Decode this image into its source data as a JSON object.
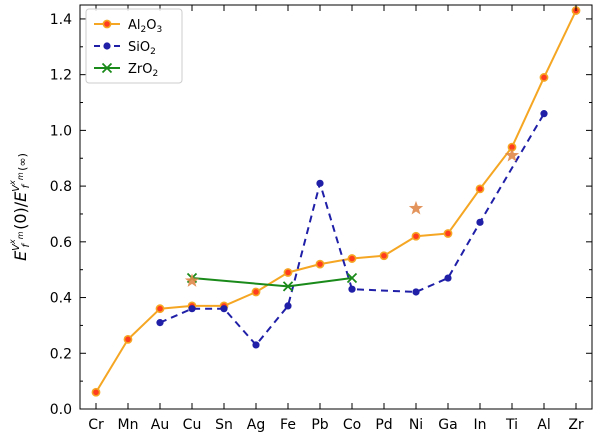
{
  "chart_data": {
    "type": "line",
    "categories": [
      "Cr",
      "Mn",
      "Au",
      "Cu",
      "Sn",
      "Ag",
      "Fe",
      "Pb",
      "Co",
      "Pd",
      "Ni",
      "Ga",
      "In",
      "Ti",
      "Al",
      "Zr"
    ],
    "ylim": [
      0.0,
      1.45
    ],
    "yticks": [
      "0.0",
      "0.2",
      "0.4",
      "0.6",
      "0.8",
      "1.0",
      "1.2",
      "1.4"
    ],
    "ylabel": "E_f^{V_m^x}(0)/E_f^{V_m^x}(∞)",
    "grid": false,
    "legend_position": "top-left",
    "series": [
      {
        "name": "Al2O3",
        "color": "#f5a623",
        "marker_fill": "#ff3c1e",
        "line_style": "solid",
        "marker": "dot",
        "values": [
          0.06,
          0.25,
          0.36,
          0.37,
          0.37,
          0.42,
          0.49,
          0.52,
          0.54,
          0.55,
          0.62,
          0.63,
          0.79,
          0.94,
          1.19,
          1.43
        ]
      },
      {
        "name": "SiO2",
        "color": "#1f1fa8",
        "line_style": "dashed",
        "marker": "dot",
        "values": [
          null,
          null,
          0.31,
          0.36,
          0.36,
          0.23,
          0.37,
          0.81,
          0.43,
          null,
          0.42,
          0.47,
          0.67,
          null,
          1.06,
          null
        ]
      },
      {
        "name": "ZrO2",
        "color": "#1a8a1a",
        "line_style": "solid",
        "marker": "x",
        "values": [
          null,
          null,
          null,
          0.47,
          null,
          null,
          0.44,
          null,
          0.47,
          null,
          null,
          null,
          null,
          null,
          null,
          null
        ]
      },
      {
        "name": "stars",
        "color": "#e0884a",
        "line_style": "none",
        "marker": "star",
        "values": [
          null,
          null,
          null,
          0.46,
          null,
          null,
          null,
          null,
          null,
          null,
          0.72,
          null,
          null,
          0.91,
          null,
          null
        ]
      }
    ],
    "legend": [
      {
        "label_main": "Al",
        "sub1": "2",
        "mid": "O",
        "sub2": "3"
      },
      {
        "label_main": "SiO",
        "sub1": "2",
        "mid": "",
        "sub2": ""
      },
      {
        "label_main": "ZrO",
        "sub1": "2",
        "mid": "",
        "sub2": ""
      }
    ],
    "ylabel_parts": {
      "E": "E",
      "f": "f",
      "V": "V",
      "m": "m",
      "x": "x",
      "arg0": "(0)/",
      "arg_inf": "(∞)"
    }
  }
}
